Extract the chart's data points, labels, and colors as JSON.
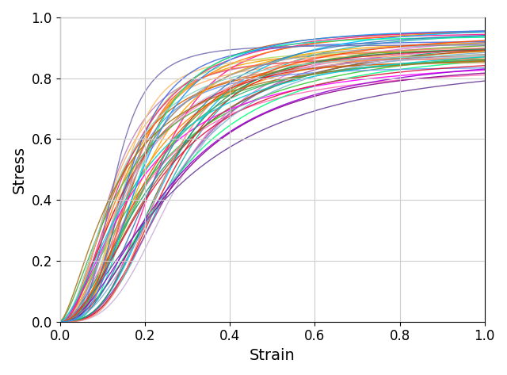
{
  "title": "",
  "xlabel": "Strain",
  "ylabel": "Stress",
  "xlim": [
    0.0,
    1.0
  ],
  "ylim": [
    0.0,
    1.0
  ],
  "xticks": [
    0.0,
    0.2,
    0.4,
    0.6,
    0.8,
    1.0
  ],
  "yticks": [
    0.0,
    0.2,
    0.4,
    0.6,
    0.8,
    1.0
  ],
  "n_curves": 50,
  "random_seed": 42,
  "linewidth": 1.0,
  "grid": true,
  "grid_color": "#cccccc",
  "figsize": [
    6.4,
    4.73
  ],
  "dpi": 100,
  "xlabel_fontsize": 14,
  "ylabel_fontsize": 14,
  "tick_fontsize": 12,
  "plateau_min": 0.84,
  "plateau_max": 0.98,
  "power_min": 0.3,
  "power_max": 0.55,
  "k_min": 3.0,
  "k_max": 7.0
}
